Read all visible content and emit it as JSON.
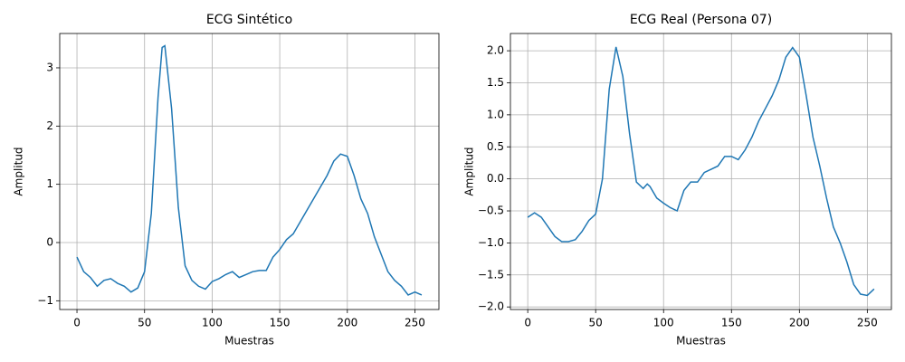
{
  "chart_data": [
    {
      "type": "line",
      "title": "ECG Sintético",
      "xlabel": "Muestras",
      "ylabel": "Amplitud",
      "grid": true,
      "color": "#1f77b4",
      "x": [
        0,
        5,
        10,
        15,
        20,
        25,
        30,
        35,
        40,
        45,
        50,
        55,
        60,
        63,
        65,
        70,
        75,
        80,
        85,
        90,
        95,
        100,
        105,
        110,
        115,
        120,
        125,
        130,
        135,
        140,
        145,
        150,
        155,
        160,
        165,
        170,
        175,
        180,
        185,
        190,
        195,
        200,
        205,
        210,
        215,
        220,
        225,
        230,
        235,
        240,
        245,
        250,
        255
      ],
      "values": [
        -0.25,
        -0.5,
        -0.6,
        -0.75,
        -0.65,
        -0.62,
        -0.7,
        -0.75,
        -0.85,
        -0.78,
        -0.5,
        0.5,
        2.5,
        3.35,
        3.38,
        2.3,
        0.6,
        -0.4,
        -0.65,
        -0.75,
        -0.8,
        -0.67,
        -0.62,
        -0.55,
        -0.5,
        -0.6,
        -0.55,
        -0.5,
        -0.48,
        -0.48,
        -0.25,
        -0.12,
        0.05,
        0.15,
        0.35,
        0.55,
        0.75,
        0.95,
        1.15,
        1.4,
        1.52,
        1.48,
        1.15,
        0.75,
        0.5,
        0.1,
        -0.2,
        -0.5,
        -0.65,
        -0.75,
        -0.9,
        -0.85,
        -0.9
      ],
      "xlim": [
        -12.75,
        267.75
      ],
      "xticks": [
        0,
        50,
        100,
        150,
        200,
        250
      ],
      "ylim": [
        -1.15,
        3.59
      ],
      "yticks": [
        {
          "value": -1,
          "label": "−1"
        },
        0,
        1,
        2,
        3
      ]
    },
    {
      "type": "line",
      "title": "ECG Real (Persona 07)",
      "xlabel": "Muestras",
      "ylabel": "Amplitud",
      "grid": true,
      "color": "#1f77b4",
      "x": [
        0,
        5,
        10,
        15,
        20,
        25,
        30,
        35,
        40,
        45,
        50,
        55,
        60,
        65,
        70,
        75,
        80,
        85,
        88,
        90,
        95,
        100,
        105,
        110,
        115,
        120,
        125,
        130,
        135,
        140,
        145,
        150,
        155,
        160,
        165,
        170,
        175,
        180,
        185,
        190,
        195,
        200,
        205,
        210,
        215,
        220,
        225,
        230,
        235,
        240,
        245,
        250,
        255
      ],
      "values": [
        -0.6,
        -0.53,
        -0.6,
        -0.75,
        -0.9,
        -0.98,
        -0.98,
        -0.95,
        -0.82,
        -0.65,
        -0.55,
        0.0,
        1.4,
        2.06,
        1.6,
        0.7,
        -0.05,
        -0.15,
        -0.08,
        -0.12,
        -0.3,
        -0.38,
        -0.45,
        -0.5,
        -0.18,
        -0.05,
        -0.05,
        0.1,
        0.15,
        0.2,
        0.35,
        0.35,
        0.3,
        0.45,
        0.65,
        0.9,
        1.1,
        1.3,
        1.55,
        1.9,
        2.05,
        1.9,
        1.3,
        0.65,
        0.2,
        -0.3,
        -0.75,
        -1.0,
        -1.3,
        -1.65,
        -1.8,
        -1.82,
        -1.72
      ],
      "xlim": [
        -12.75,
        267.75
      ],
      "xticks": [
        0,
        50,
        100,
        150,
        200,
        250
      ],
      "ylim": [
        -2.04,
        2.27
      ],
      "yticks": [
        {
          "value": -2,
          "label": "−2.0"
        },
        {
          "value": -1.5,
          "label": "−1.5"
        },
        {
          "value": -1,
          "label": "−1.0"
        },
        {
          "value": -0.5,
          "label": "−0.5"
        },
        {
          "value": 0,
          "label": "0.0"
        },
        0.5,
        {
          "value": 1,
          "label": "1.0"
        },
        1.5,
        {
          "value": 2,
          "label": "2.0"
        }
      ]
    }
  ]
}
